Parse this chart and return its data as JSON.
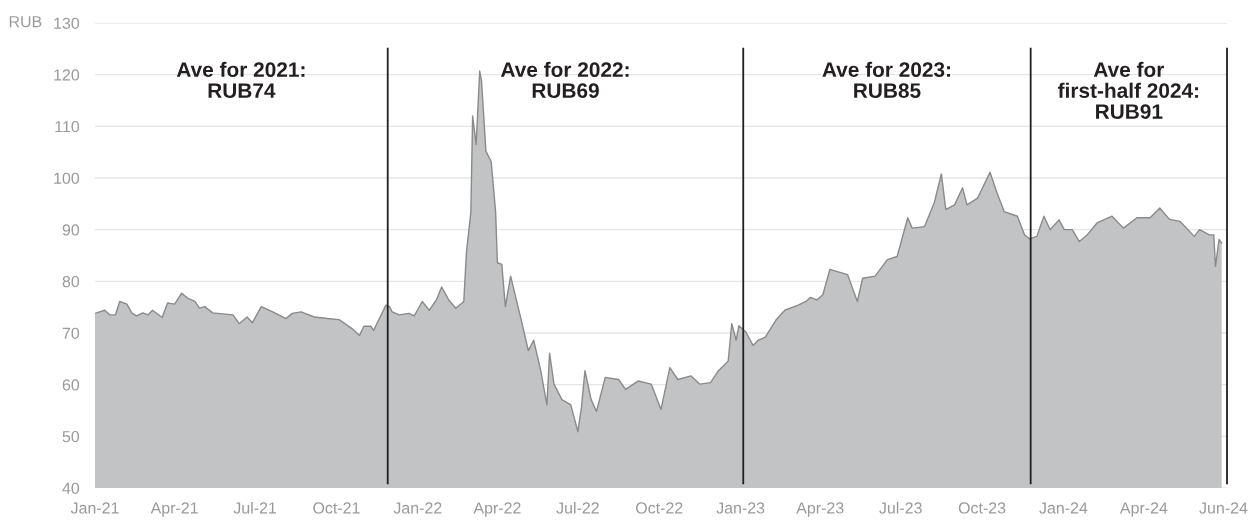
{
  "chart_data": {
    "type": "area",
    "ylabel": "RUB",
    "x": [
      "2021-01-01",
      "2021-01-12",
      "2021-01-18",
      "2021-01-24",
      "2021-01-29",
      "2021-02-06",
      "2021-02-12",
      "2021-02-17",
      "2021-02-24",
      "2021-03-02",
      "2021-03-07",
      "2021-03-18",
      "2021-03-24",
      "2021-04-01",
      "2021-04-09",
      "2021-04-16",
      "2021-04-24",
      "2021-04-29",
      "2021-05-05",
      "2021-05-14",
      "2021-06-06",
      "2021-06-13",
      "2021-06-22",
      "2021-06-28",
      "2021-07-08",
      "2021-07-21",
      "2021-08-05",
      "2021-08-12",
      "2021-08-22",
      "2021-09-06",
      "2021-09-21",
      "2021-10-04",
      "2021-10-19",
      "2021-10-27",
      "2021-11-01",
      "2021-11-09",
      "2021-11-12",
      "2021-11-18",
      "2021-11-26",
      "2021-11-30",
      "2021-12-03",
      "2021-12-11",
      "2021-12-22",
      "2021-12-28",
      "2022-01-06",
      "2022-01-14",
      "2022-01-22",
      "2022-01-28",
      "2022-02-05",
      "2022-02-13",
      "2022-02-22",
      "2022-02-25",
      "2022-03-02",
      "2022-03-04",
      "2022-03-08",
      "2022-03-12",
      "2022-03-14",
      "2022-03-19",
      "2022-03-25",
      "2022-03-30",
      "2022-04-01",
      "2022-04-06",
      "2022-04-10",
      "2022-04-16",
      "2022-04-22",
      "2022-04-28",
      "2022-05-06",
      "2022-05-12",
      "2022-05-20",
      "2022-05-27",
      "2022-05-30",
      "2022-06-04",
      "2022-06-13",
      "2022-06-23",
      "2022-07-01",
      "2022-07-05",
      "2022-07-09",
      "2022-07-16",
      "2022-07-22",
      "2022-08-01",
      "2022-08-16",
      "2022-08-24",
      "2022-09-07",
      "2022-09-22",
      "2022-10-03",
      "2022-10-13",
      "2022-10-22",
      "2022-11-06",
      "2022-11-16",
      "2022-11-28",
      "2022-12-07",
      "2022-12-18",
      "2022-12-22",
      "2022-12-27",
      "2022-12-30",
      "2023-01-07",
      "2023-01-15",
      "2023-01-21",
      "2023-01-29",
      "2023-02-10",
      "2023-02-20",
      "2023-03-07",
      "2023-03-16",
      "2023-03-21",
      "2023-03-28",
      "2023-04-04",
      "2023-04-12",
      "2023-05-02",
      "2023-05-13",
      "2023-05-19",
      "2023-06-02",
      "2023-06-16",
      "2023-06-27",
      "2023-07-09",
      "2023-07-14",
      "2023-07-28",
      "2023-08-08",
      "2023-08-16",
      "2023-08-21",
      "2023-08-31",
      "2023-09-09",
      "2023-09-14",
      "2023-09-26",
      "2023-10-10",
      "2023-10-18",
      "2023-10-26",
      "2023-11-10",
      "2023-11-18",
      "2023-11-24",
      "2023-12-02",
      "2023-12-10",
      "2023-12-17",
      "2023-12-27",
      "2024-01-02",
      "2024-01-11",
      "2024-01-19",
      "2024-01-28",
      "2024-02-08",
      "2024-02-25",
      "2024-03-09",
      "2024-03-24",
      "2024-04-08",
      "2024-04-19",
      "2024-04-30",
      "2024-05-12",
      "2024-05-28",
      "2024-06-03",
      "2024-06-14",
      "2024-06-19",
      "2024-06-21",
      "2024-06-25",
      "2024-06-28"
    ],
    "series": [
      {
        "color": "#c2c3c4",
        "values": [
          73.8,
          74.4,
          73.5,
          73.5,
          76.1,
          75.6,
          73.8,
          73.3,
          73.9,
          73.5,
          74.4,
          73.0,
          75.8,
          75.6,
          77.7,
          76.7,
          76.1,
          74.8,
          75.1,
          73.9,
          73.5,
          71.8,
          73.1,
          72.0,
          75.1,
          74.1,
          72.8,
          73.8,
          74.1,
          73.1,
          72.8,
          72.6,
          70.8,
          69.5,
          71.3,
          71.3,
          70.5,
          72.6,
          75.4,
          75.1,
          74.1,
          73.5,
          73.8,
          73.3,
          76.1,
          74.4,
          76.4,
          78.9,
          76.4,
          74.8,
          76.1,
          85.6,
          93.4,
          112.0,
          106.5,
          120.7,
          118.9,
          105.2,
          103.2,
          93.4,
          83.6,
          83.3,
          75.1,
          81.0,
          76.7,
          72.5,
          66.6,
          68.6,
          62.7,
          56.1,
          66.1,
          60.1,
          57.1,
          56.1,
          50.9,
          55.5,
          62.7,
          57.1,
          54.8,
          61.4,
          61.0,
          59.1,
          60.7,
          60.1,
          55.2,
          63.3,
          61.0,
          61.7,
          60.1,
          60.4,
          62.7,
          64.6,
          71.8,
          68.6,
          71.4,
          70.2,
          67.6,
          68.6,
          69.2,
          72.5,
          74.4,
          75.4,
          76.1,
          76.9,
          76.4,
          77.4,
          82.3,
          81.3,
          76.1,
          80.6,
          81.0,
          84.2,
          84.8,
          92.3,
          90.3,
          90.6,
          95.2,
          100.8,
          93.9,
          94.8,
          98.1,
          94.8,
          96.1,
          101.1,
          97.1,
          93.5,
          92.6,
          89.0,
          88.2,
          88.7,
          92.6,
          90.0,
          91.9,
          90.0,
          90.0,
          87.7,
          89.0,
          91.3,
          92.6,
          90.3,
          92.3,
          92.3,
          94.2,
          92.0,
          91.6,
          88.7,
          90.0,
          89.0,
          89.0,
          82.9,
          88.1,
          87.4
        ]
      }
    ],
    "xlim": [
      "2021-01-01",
      "2024-07-04"
    ],
    "xticks": [
      {
        "value": "2021-01-01",
        "label": "Jan-21"
      },
      {
        "value": "2021-04-01",
        "label": "Apr-21"
      },
      {
        "value": "2021-07-01",
        "label": "Jul-21"
      },
      {
        "value": "2021-10-01",
        "label": "Oct-21"
      },
      {
        "value": "2022-01-01",
        "label": "Jan-22"
      },
      {
        "value": "2022-04-01",
        "label": "Apr-22"
      },
      {
        "value": "2022-07-01",
        "label": "Jul-22"
      },
      {
        "value": "2022-10-01",
        "label": "Oct-22"
      },
      {
        "value": "2023-01-01",
        "label": "Jan-23"
      },
      {
        "value": "2023-04-01",
        "label": "Apr-23"
      },
      {
        "value": "2023-07-01",
        "label": "Jul-23"
      },
      {
        "value": "2023-10-01",
        "label": "Oct-23"
      },
      {
        "value": "2024-01-01",
        "label": "Jan-24"
      },
      {
        "value": "2024-04-01",
        "label": "Apr-24"
      },
      {
        "value": "2024-06-30",
        "label": "Jun-24"
      }
    ],
    "ylim": [
      40,
      130
    ],
    "yticks": [
      40,
      50,
      60,
      70,
      80,
      90,
      100,
      110,
      120,
      130
    ],
    "grid": "y",
    "ref_lines": [
      {
        "axis": "x",
        "value": "2021-11-28",
        "color": "#231f20"
      },
      {
        "axis": "x",
        "value": "2023-01-04",
        "color": "#231f20"
      },
      {
        "axis": "x",
        "value": "2023-11-25",
        "color": "#231f20"
      },
      {
        "axis": "x",
        "value": "2024-07-04",
        "color": "#231f20"
      }
    ],
    "annotations": [
      "Ave for 2021:\nRUB74",
      "Ave for 2022:\nRUB69",
      "Ave for 2023:\nRUB85",
      "Ave for\nfirst-half 2024:\nRUB91"
    ]
  }
}
